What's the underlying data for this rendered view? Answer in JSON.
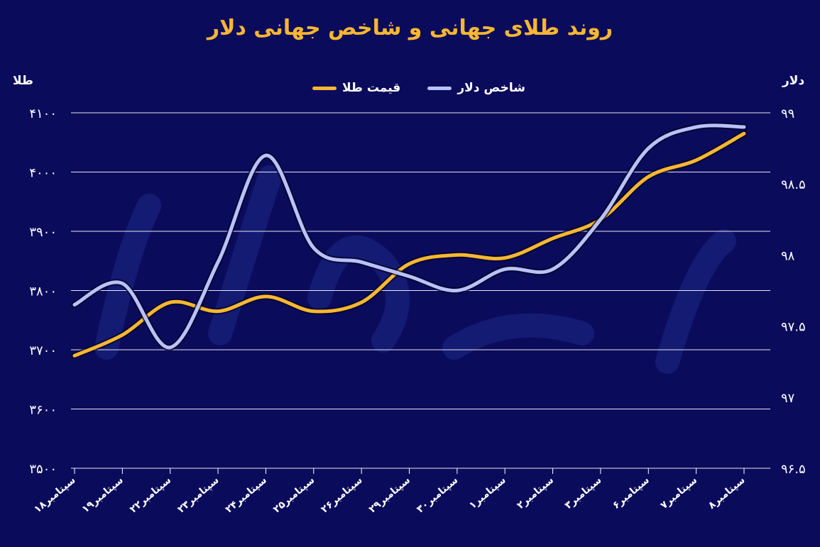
{
  "page": {
    "title": "روند طلای جهانی و شاخص جهانی دلار",
    "left_axis_title": "طلا",
    "right_axis_title": "دلار",
    "background_color": "#0b0b5c"
  },
  "chart_data": {
    "type": "line",
    "categories": [
      "۱۸سپتامبر",
      "۱۹سپتامبر",
      "۲۲سپتامبر",
      "۲۳سپتامبر",
      "۲۴سپتامبر",
      "۲۵سپتامبر",
      "۲۶سپتامبر",
      "۲۹سپتامبر",
      "۳۰سپتامبر",
      "۱سپتامبر",
      "۲سپتامبر",
      "۳سپتامبر",
      "۶سپتامبر",
      "۷سپتامبر",
      "۸سپتامبر"
    ],
    "series": [
      {
        "name": "قیمت طلا",
        "axis": "left",
        "color": "#f7b731",
        "values": [
          3690,
          3725,
          3780,
          3765,
          3790,
          3765,
          3780,
          3845,
          3860,
          3855,
          3888,
          3920,
          3992,
          4020,
          4065
        ]
      },
      {
        "name": "شاخص دلار",
        "axis": "right",
        "color": "#b9c2f7",
        "values": [
          97.65,
          97.8,
          97.35,
          97.95,
          98.7,
          98.05,
          97.95,
          97.85,
          97.75,
          97.9,
          97.9,
          98.25,
          98.75,
          98.9,
          98.9
        ]
      }
    ],
    "y_left": {
      "ylim": [
        3500,
        4100
      ],
      "ticks": [
        "۳۵۰۰",
        "۳۶۰۰",
        "۳۷۰۰",
        "۳۸۰۰",
        "۳۹۰۰",
        "۴۰۰۰",
        "۴۱۰۰"
      ]
    },
    "y_right": {
      "ylim": [
        96.5,
        99
      ],
      "ticks": [
        "۹۶.۵",
        "۹۷",
        "۹۷.۵",
        "۹۸",
        "۹۸.۵",
        "۹۹"
      ]
    },
    "grid": true,
    "legend_position": "top-center"
  }
}
